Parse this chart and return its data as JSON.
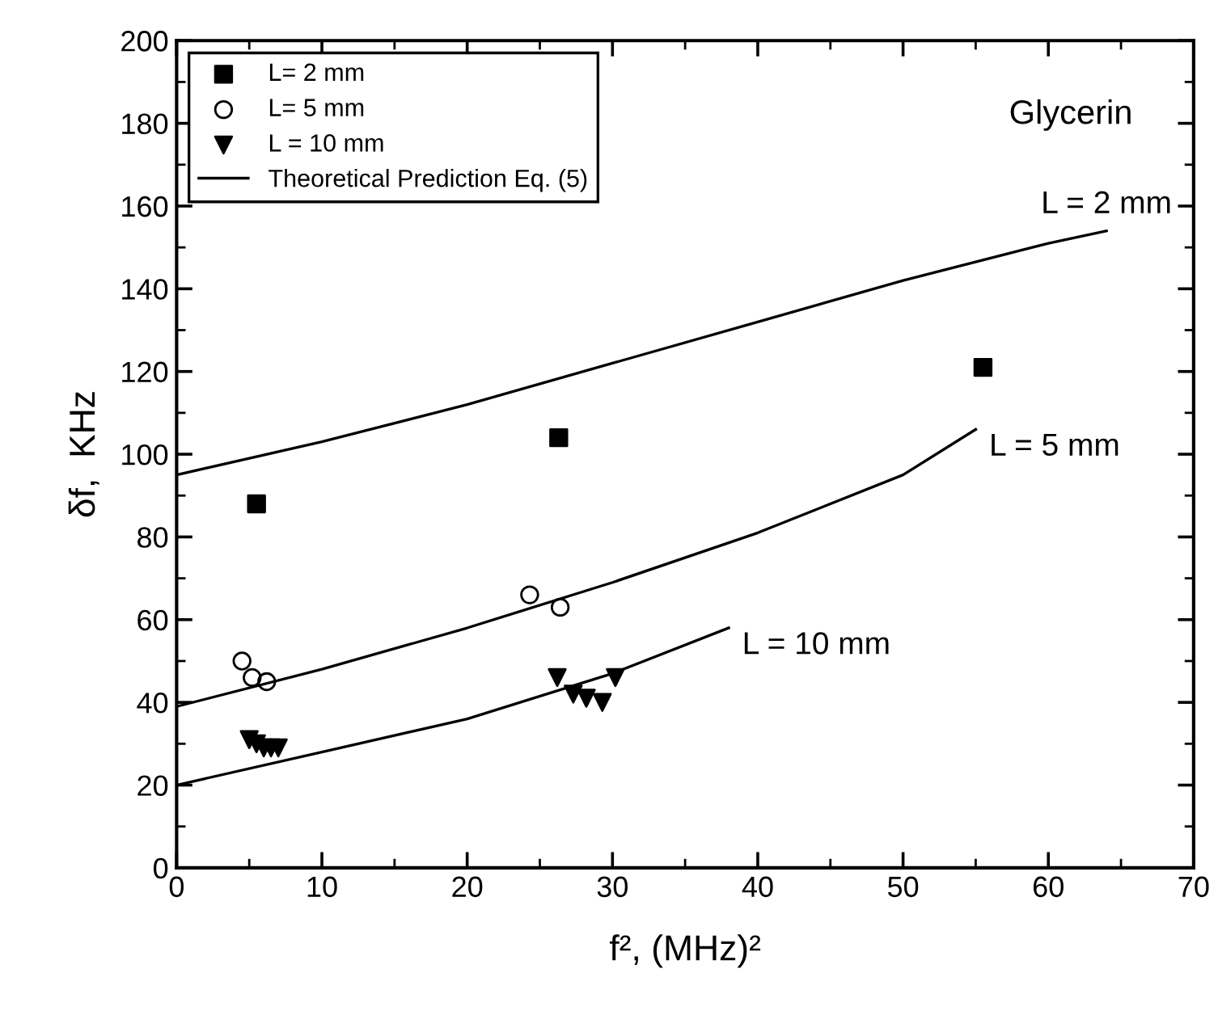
{
  "chart_data": {
    "type": "scatter",
    "xlabel": "f², (MHz)²",
    "ylabel": "δf,  KHz",
    "xlim": [
      0,
      70
    ],
    "xticks": [
      0,
      10,
      20,
      30,
      40,
      50,
      60,
      70
    ],
    "ylim": [
      0,
      200
    ],
    "yticks": [
      0,
      20,
      40,
      60,
      80,
      100,
      120,
      140,
      160,
      180,
      200
    ],
    "grid": false,
    "legend": "top left",
    "series": [
      {
        "name": "L= 2 mm",
        "marker": "square",
        "color": "#000000",
        "x": [
          5.5,
          26.3,
          55.5
        ],
        "values": [
          88,
          104,
          121
        ]
      },
      {
        "name": "L= 5 mm",
        "marker": "circle",
        "color": "#000000",
        "x": [
          4.5,
          5.2,
          6.2,
          24.3,
          26.4
        ],
        "values": [
          50,
          46,
          45,
          66,
          63
        ]
      },
      {
        "name": "L = 10 mm",
        "marker": "triangle",
        "color": "#000000",
        "x": [
          5.0,
          5.5,
          6.0,
          6.5,
          7.0,
          26.2,
          27.3,
          28.2,
          29.3,
          30.2
        ],
        "values": [
          31,
          30,
          29,
          29,
          29,
          46,
          42,
          41,
          40,
          46
        ]
      },
      {
        "name": "Theoretical Prediction Eq. (5)",
        "type": "line",
        "color": "#000000",
        "x": [
          0,
          10,
          20,
          30,
          40,
          50,
          60,
          64
        ],
        "values": [
          95,
          103,
          112,
          122,
          132,
          142,
          151,
          154
        ]
      },
      {
        "type": "line",
        "color": "#000000",
        "x": [
          0,
          10,
          20,
          30,
          40,
          50,
          55
        ],
        "values": [
          39,
          48,
          58,
          69,
          81,
          95,
          106
        ]
      },
      {
        "type": "line",
        "color": "#000000",
        "x": [
          0,
          10,
          20,
          30,
          38
        ],
        "values": [
          20,
          28,
          36,
          47,
          58
        ]
      }
    ],
    "annotations": [
      "Glycerin",
      {
        "text": "L = 2 mm",
        "x": 64,
        "y": 154
      },
      {
        "text": "L = 5 mm",
        "x": 55,
        "y": 106
      },
      {
        "text": "L = 10 mm",
        "x": 38,
        "y": 58
      }
    ]
  }
}
